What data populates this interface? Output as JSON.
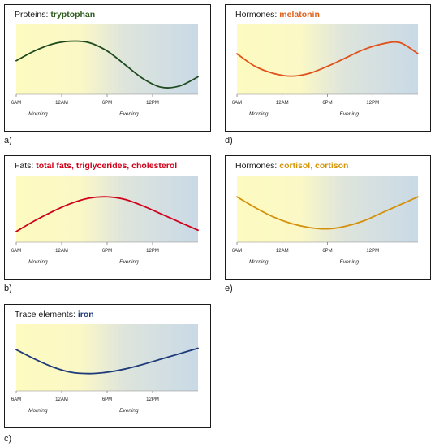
{
  "chart_data": [
    {
      "id": "a",
      "type": "line",
      "title_prefix": "Proteins: ",
      "title_highlight": "tryptophan",
      "highlight_color": "#2e5a1e",
      "line_color": "#1f4a1f",
      "x_ticks": [
        "6AM",
        "12AM",
        "6PM",
        "12PM"
      ],
      "periods": [
        "Morning",
        "Evening"
      ],
      "letter": "a)",
      "series": [
        {
          "x": [
            0,
            0.1,
            0.2,
            0.3,
            0.4,
            0.5,
            0.6,
            0.7,
            0.8,
            0.9,
            1.0
          ],
          "values": [
            0.48,
            0.62,
            0.72,
            0.76,
            0.74,
            0.62,
            0.42,
            0.22,
            0.1,
            0.12,
            0.25
          ]
        }
      ],
      "ylim": [
        0,
        1
      ]
    },
    {
      "id": "b",
      "type": "line",
      "title_prefix": "Fats: ",
      "title_highlight": "total fats, triglycerides, cholesterol",
      "highlight_color": "#d0001a",
      "line_color": "#d0001a",
      "x_ticks": [
        "6AM",
        "12AM",
        "6PM",
        "12PM"
      ],
      "periods": [
        "Morning",
        "Evening"
      ],
      "letter": "b)",
      "series": [
        {
          "x": [
            0,
            0.1,
            0.2,
            0.3,
            0.4,
            0.5,
            0.6,
            0.7,
            0.8,
            0.9,
            1.0
          ],
          "values": [
            0.16,
            0.32,
            0.46,
            0.58,
            0.66,
            0.68,
            0.64,
            0.54,
            0.42,
            0.3,
            0.18
          ]
        }
      ],
      "ylim": [
        0,
        1
      ]
    },
    {
      "id": "c",
      "type": "line",
      "title_prefix": "Trace elements: ",
      "title_highlight": "iron",
      "highlight_color": "#1e3a7a",
      "line_color": "#1e3a7a",
      "x_ticks": [
        "6AM",
        "12AM",
        "6PM",
        "12PM"
      ],
      "periods": [
        "Morning",
        "Evening"
      ],
      "letter": "c)",
      "series": [
        {
          "x": [
            0,
            0.1,
            0.2,
            0.3,
            0.4,
            0.5,
            0.6,
            0.7,
            0.8,
            0.9,
            1.0
          ],
          "values": [
            0.62,
            0.48,
            0.36,
            0.28,
            0.26,
            0.28,
            0.33,
            0.4,
            0.48,
            0.56,
            0.64
          ]
        }
      ],
      "ylim": [
        0,
        1
      ]
    },
    {
      "id": "d",
      "type": "line",
      "title_prefix": "Hormones: ",
      "title_highlight": "melatonin",
      "highlight_color": "#e0601a",
      "line_color": "#e0501a",
      "x_ticks": [
        "6AM",
        "12AM",
        "6PM",
        "12PM"
      ],
      "periods": [
        "Morning",
        "Evening"
      ],
      "letter": "d)",
      "series": [
        {
          "x": [
            0,
            0.1,
            0.2,
            0.3,
            0.4,
            0.5,
            0.6,
            0.7,
            0.8,
            0.9,
            1.0
          ],
          "values": [
            0.58,
            0.4,
            0.3,
            0.26,
            0.3,
            0.4,
            0.52,
            0.64,
            0.72,
            0.74,
            0.58
          ]
        }
      ],
      "ylim": [
        0,
        1
      ]
    },
    {
      "id": "e",
      "type": "line",
      "title_prefix": "Hormones: ",
      "title_highlight": "cortisol, cortison",
      "highlight_color": "#d4960a",
      "line_color": "#d4900a",
      "x_ticks": [
        "6AM",
        "12AM",
        "6PM",
        "12PM"
      ],
      "periods": [
        "Morning",
        "Evening"
      ],
      "letter": "e)",
      "series": [
        {
          "x": [
            0,
            0.1,
            0.2,
            0.3,
            0.4,
            0.5,
            0.6,
            0.7,
            0.8,
            0.9,
            1.0
          ],
          "values": [
            0.68,
            0.52,
            0.38,
            0.28,
            0.22,
            0.2,
            0.24,
            0.32,
            0.44,
            0.56,
            0.68
          ]
        }
      ],
      "ylim": [
        0,
        1
      ]
    }
  ]
}
